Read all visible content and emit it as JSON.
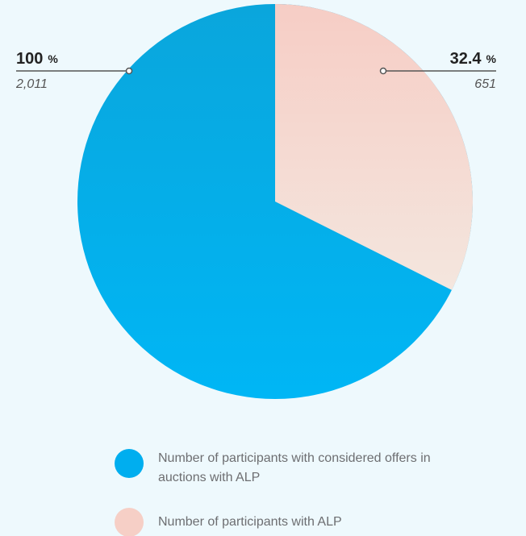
{
  "chart_data": {
    "type": "pie",
    "categories": [
      "Number of participants with considered offers in auctions with ALP",
      "Number of participants with ALP"
    ],
    "values": [
      100,
      32.4
    ],
    "unit": "%",
    "counts": [
      2011,
      651
    ],
    "count_labels": [
      "2,011",
      "651"
    ],
    "colors": [
      "#00aeef",
      "#f6cfc6"
    ]
  }
}
